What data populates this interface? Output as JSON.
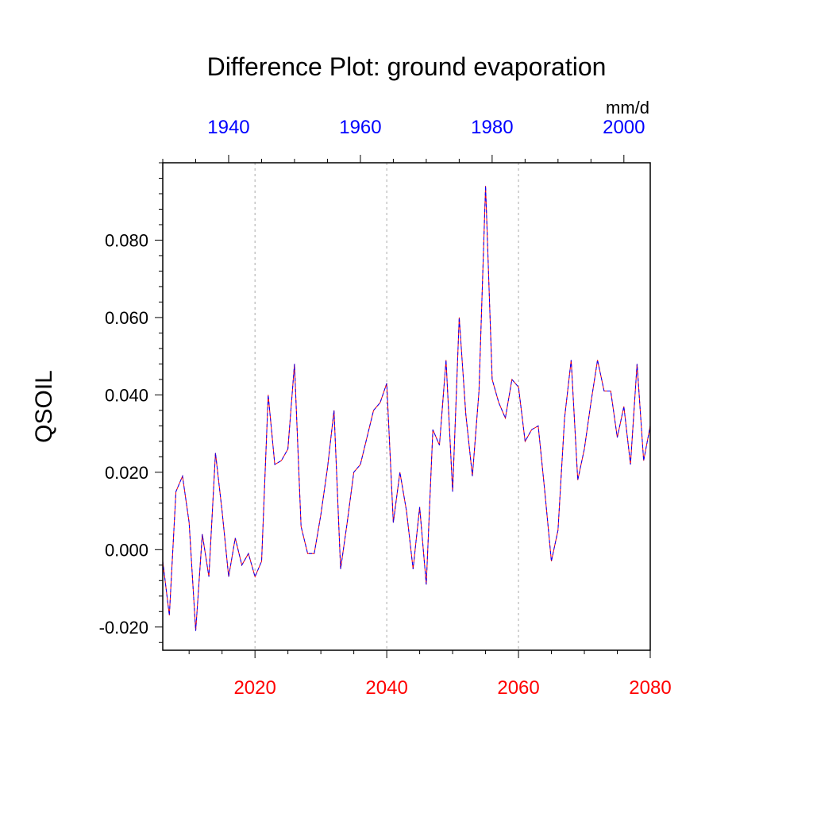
{
  "chart_data": {
    "type": "line",
    "title": "Difference Plot: ground evaporation",
    "ylabel": "QSOIL",
    "units": "mm/d",
    "ylim": [
      -0.026,
      0.1
    ],
    "yticks": [
      -0.02,
      0.0,
      0.02,
      0.04,
      0.06,
      0.08
    ],
    "ytick_labels": [
      "-0.020",
      "0.000",
      "0.020",
      "0.040",
      "0.060",
      "0.080"
    ],
    "x_bottom": {
      "range": [
        2006,
        2080
      ],
      "ticks": [
        2020,
        2040,
        2060,
        2080
      ],
      "tick_labels": [
        "2020",
        "2040",
        "2060",
        "2080"
      ],
      "color": "#ff0000"
    },
    "x_top": {
      "range": [
        1930,
        2004
      ],
      "ticks": [
        1940,
        1960,
        1980,
        2000
      ],
      "tick_labels": [
        "1940",
        "1960",
        "1980",
        "2000"
      ],
      "color": "#0000ff"
    },
    "grid": "vertical dashed at major bottom ticks",
    "series": [
      {
        "name": "difference",
        "colors": [
          "#ff0000",
          "#0000ff"
        ],
        "x": [
          2006,
          2007,
          2008,
          2009,
          2010,
          2011,
          2012,
          2013,
          2014,
          2015,
          2016,
          2017,
          2018,
          2019,
          2020,
          2021,
          2022,
          2023,
          2024,
          2025,
          2026,
          2027,
          2028,
          2029,
          2030,
          2031,
          2032,
          2033,
          2034,
          2035,
          2036,
          2037,
          2038,
          2039,
          2040,
          2041,
          2042,
          2043,
          2044,
          2045,
          2046,
          2047,
          2048,
          2049,
          2050,
          2051,
          2052,
          2053,
          2054,
          2055,
          2056,
          2057,
          2058,
          2059,
          2060,
          2061,
          2062,
          2063,
          2064,
          2065,
          2066,
          2067,
          2068,
          2069,
          2070,
          2071,
          2072,
          2073,
          2074,
          2075,
          2076,
          2077,
          2078,
          2079,
          2080
        ],
        "values": [
          -0.003,
          -0.017,
          0.015,
          0.019,
          0.007,
          -0.021,
          0.004,
          -0.007,
          0.025,
          0.01,
          -0.007,
          0.003,
          -0.004,
          -0.001,
          -0.007,
          -0.003,
          0.04,
          0.022,
          0.023,
          0.026,
          0.048,
          0.006,
          -0.001,
          -0.001,
          0.009,
          0.021,
          0.036,
          -0.005,
          0.007,
          0.02,
          0.022,
          0.029,
          0.036,
          0.038,
          0.043,
          0.007,
          0.02,
          0.01,
          -0.005,
          0.011,
          -0.009,
          0.031,
          0.027,
          0.049,
          0.015,
          0.06,
          0.035,
          0.019,
          0.041,
          0.094,
          0.044,
          0.038,
          0.034,
          0.044,
          0.042,
          0.028,
          0.031,
          0.032,
          0.015,
          -0.003,
          0.005,
          0.034,
          0.049,
          0.018,
          0.026,
          0.038,
          0.049,
          0.041,
          0.041,
          0.029,
          0.037,
          0.022,
          0.048,
          0.023,
          0.032
        ]
      }
    ]
  }
}
